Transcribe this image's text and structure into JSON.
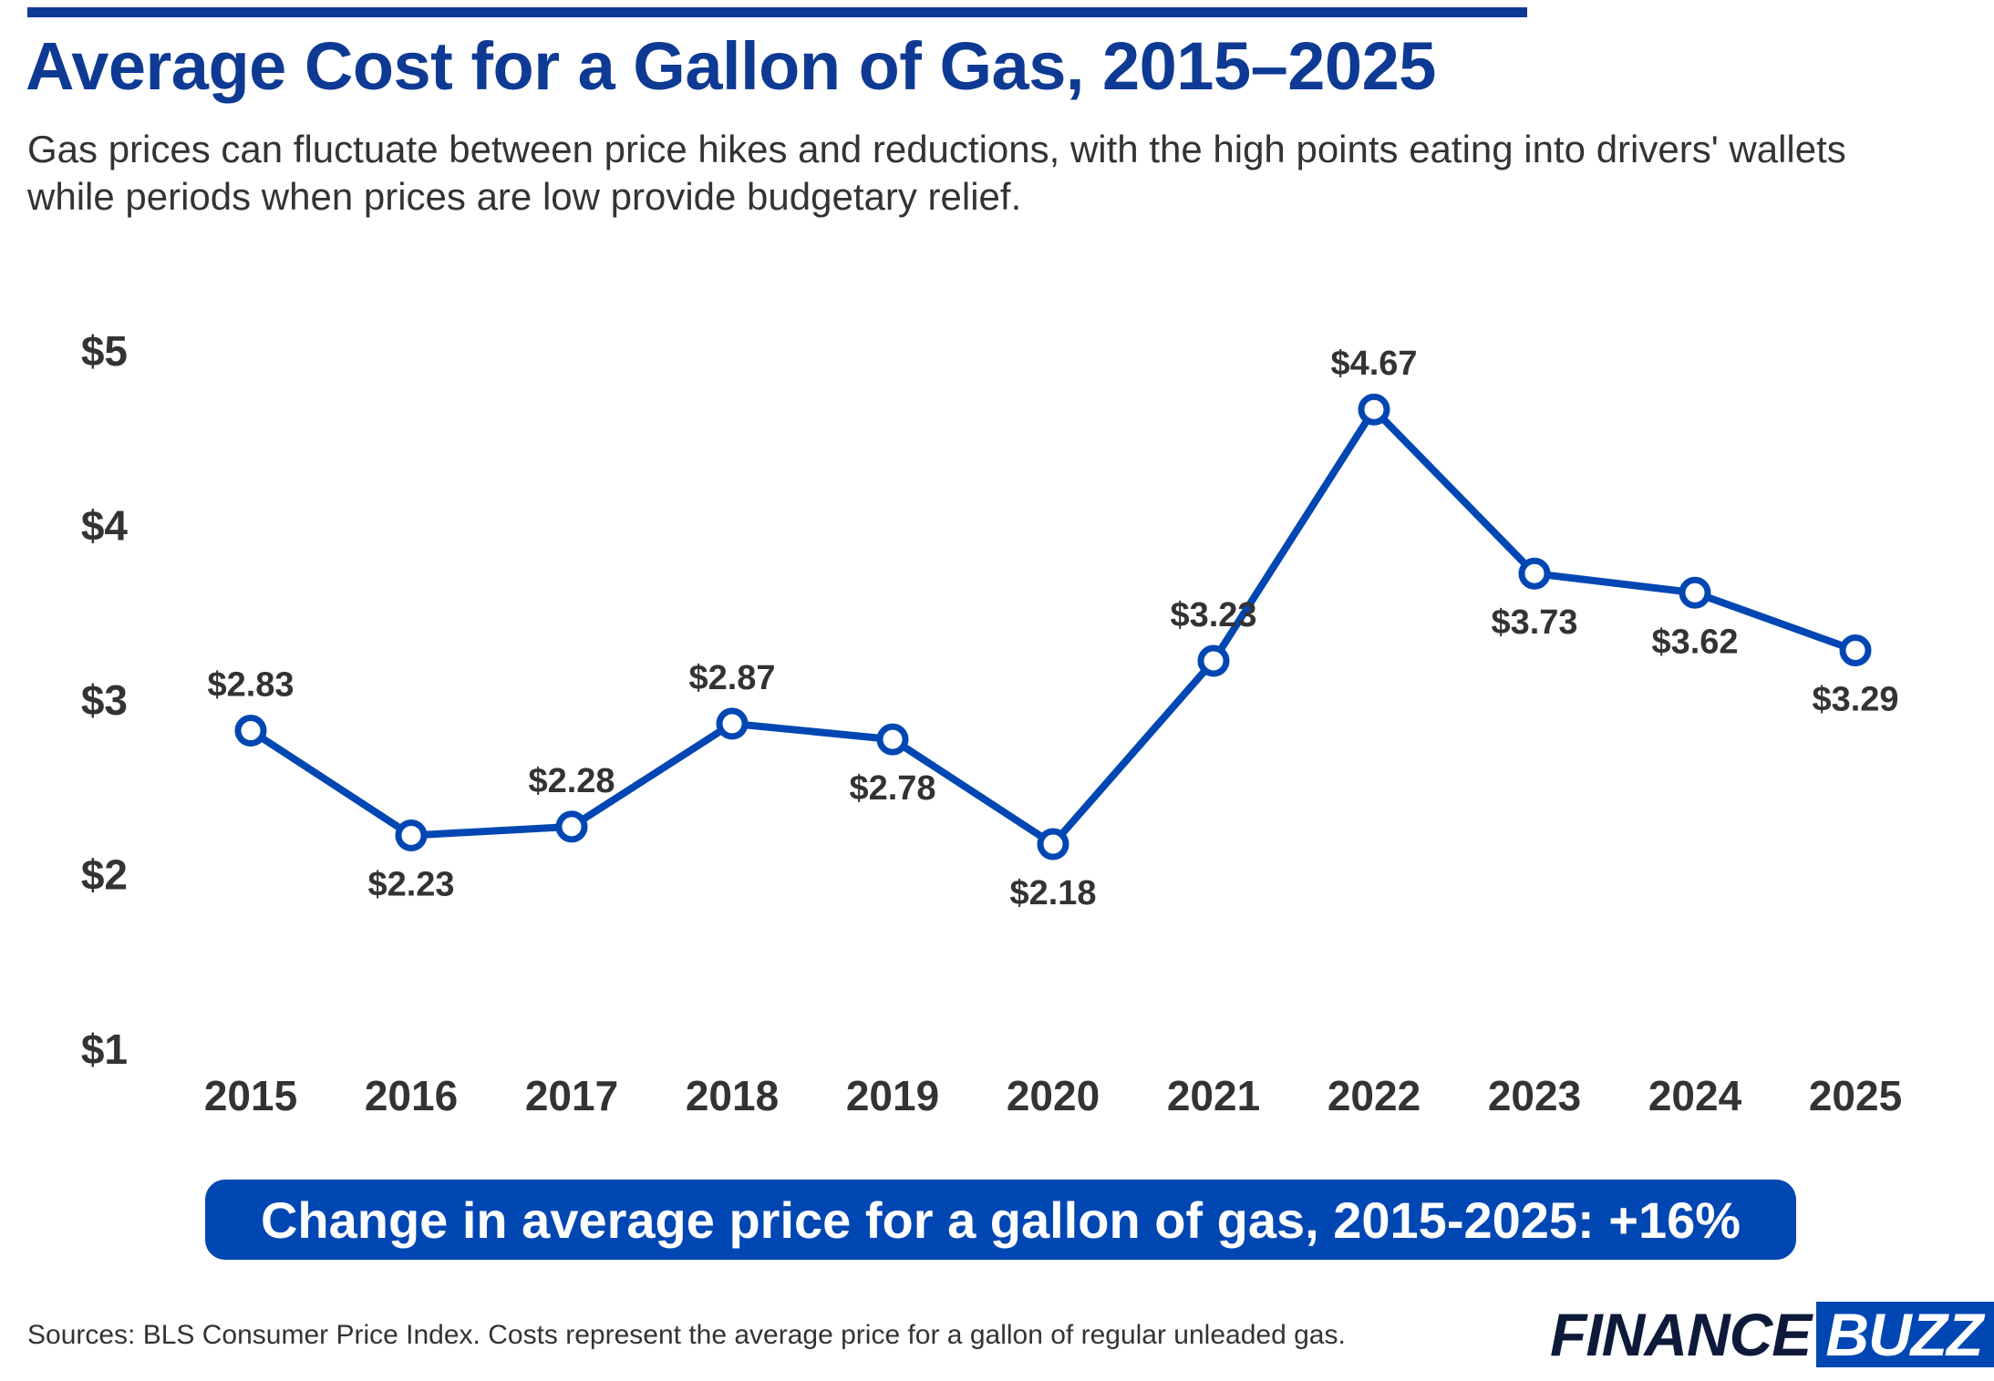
{
  "header": {
    "title": "Average Cost for a Gallon of Gas, 2015–2025",
    "subtitle": "Gas prices can fluctuate between price hikes and reductions, with the high points eating into drivers' wallets while periods when prices are low provide budgetary relief."
  },
  "chart_data": {
    "type": "line",
    "x": [
      "2015",
      "2016",
      "2017",
      "2018",
      "2019",
      "2020",
      "2021",
      "2022",
      "2023",
      "2024",
      "2025"
    ],
    "series": [
      {
        "values": [
          2.83,
          2.23,
          2.28,
          2.87,
          2.78,
          2.18,
          3.23,
          4.67,
          3.73,
          3.62,
          3.29
        ],
        "labels": [
          "$2.83",
          "$2.23",
          "$2.28",
          "$2.87",
          "$2.78",
          "$2.18",
          "$3.23",
          "$4.67",
          "$3.73",
          "$3.62",
          "$3.29"
        ],
        "label_side": [
          "above",
          "below",
          "above",
          "above",
          "below",
          "below",
          "above",
          "above",
          "below",
          "below",
          "below"
        ]
      }
    ],
    "y_ticks": [
      1,
      2,
      3,
      4,
      5
    ],
    "y_tick_labels": [
      "$1",
      "$2",
      "$3",
      "$4",
      "$5"
    ],
    "ylim": [
      1,
      5
    ],
    "grid": false,
    "line_color": "#0047b3"
  },
  "banner": {
    "text": "Change in average price for a gallon of gas, 2015-2025: +16%"
  },
  "footer": {
    "source": "Sources: BLS Consumer Price Index. Costs represent the average price for a gallon of regular unleaded gas.",
    "logo_part1": "FINANCE",
    "logo_part2": "BUZZ"
  },
  "colors": {
    "title": "#0e3a94",
    "accent": "#0047b3",
    "text": "#333333"
  }
}
